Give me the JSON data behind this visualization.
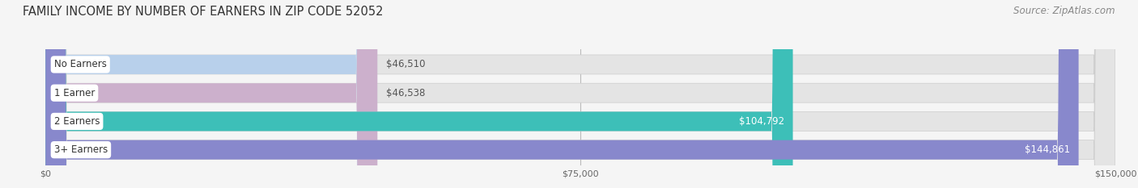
{
  "title": "FAMILY INCOME BY NUMBER OF EARNERS IN ZIP CODE 52052",
  "source": "Source: ZipAtlas.com",
  "categories": [
    "No Earners",
    "1 Earner",
    "2 Earners",
    "3+ Earners"
  ],
  "values": [
    46510,
    46538,
    104792,
    144861
  ],
  "bar_colors": [
    "#b8d0eb",
    "#ccb0cc",
    "#3dbfb8",
    "#8888cc"
  ],
  "label_colors": [
    "#555555",
    "#555555",
    "#ffffff",
    "#ffffff"
  ],
  "value_labels": [
    "$46,510",
    "$46,538",
    "$104,792",
    "$144,861"
  ],
  "x_max": 150000,
  "x_ticks": [
    0,
    75000,
    150000
  ],
  "x_tick_labels": [
    "$0",
    "$75,000",
    "$150,000"
  ],
  "background_color": "#f5f5f5",
  "bar_background_color": "#e4e4e4",
  "title_fontsize": 10.5,
  "source_fontsize": 8.5,
  "label_fontsize": 8.5,
  "value_fontsize": 8.5
}
